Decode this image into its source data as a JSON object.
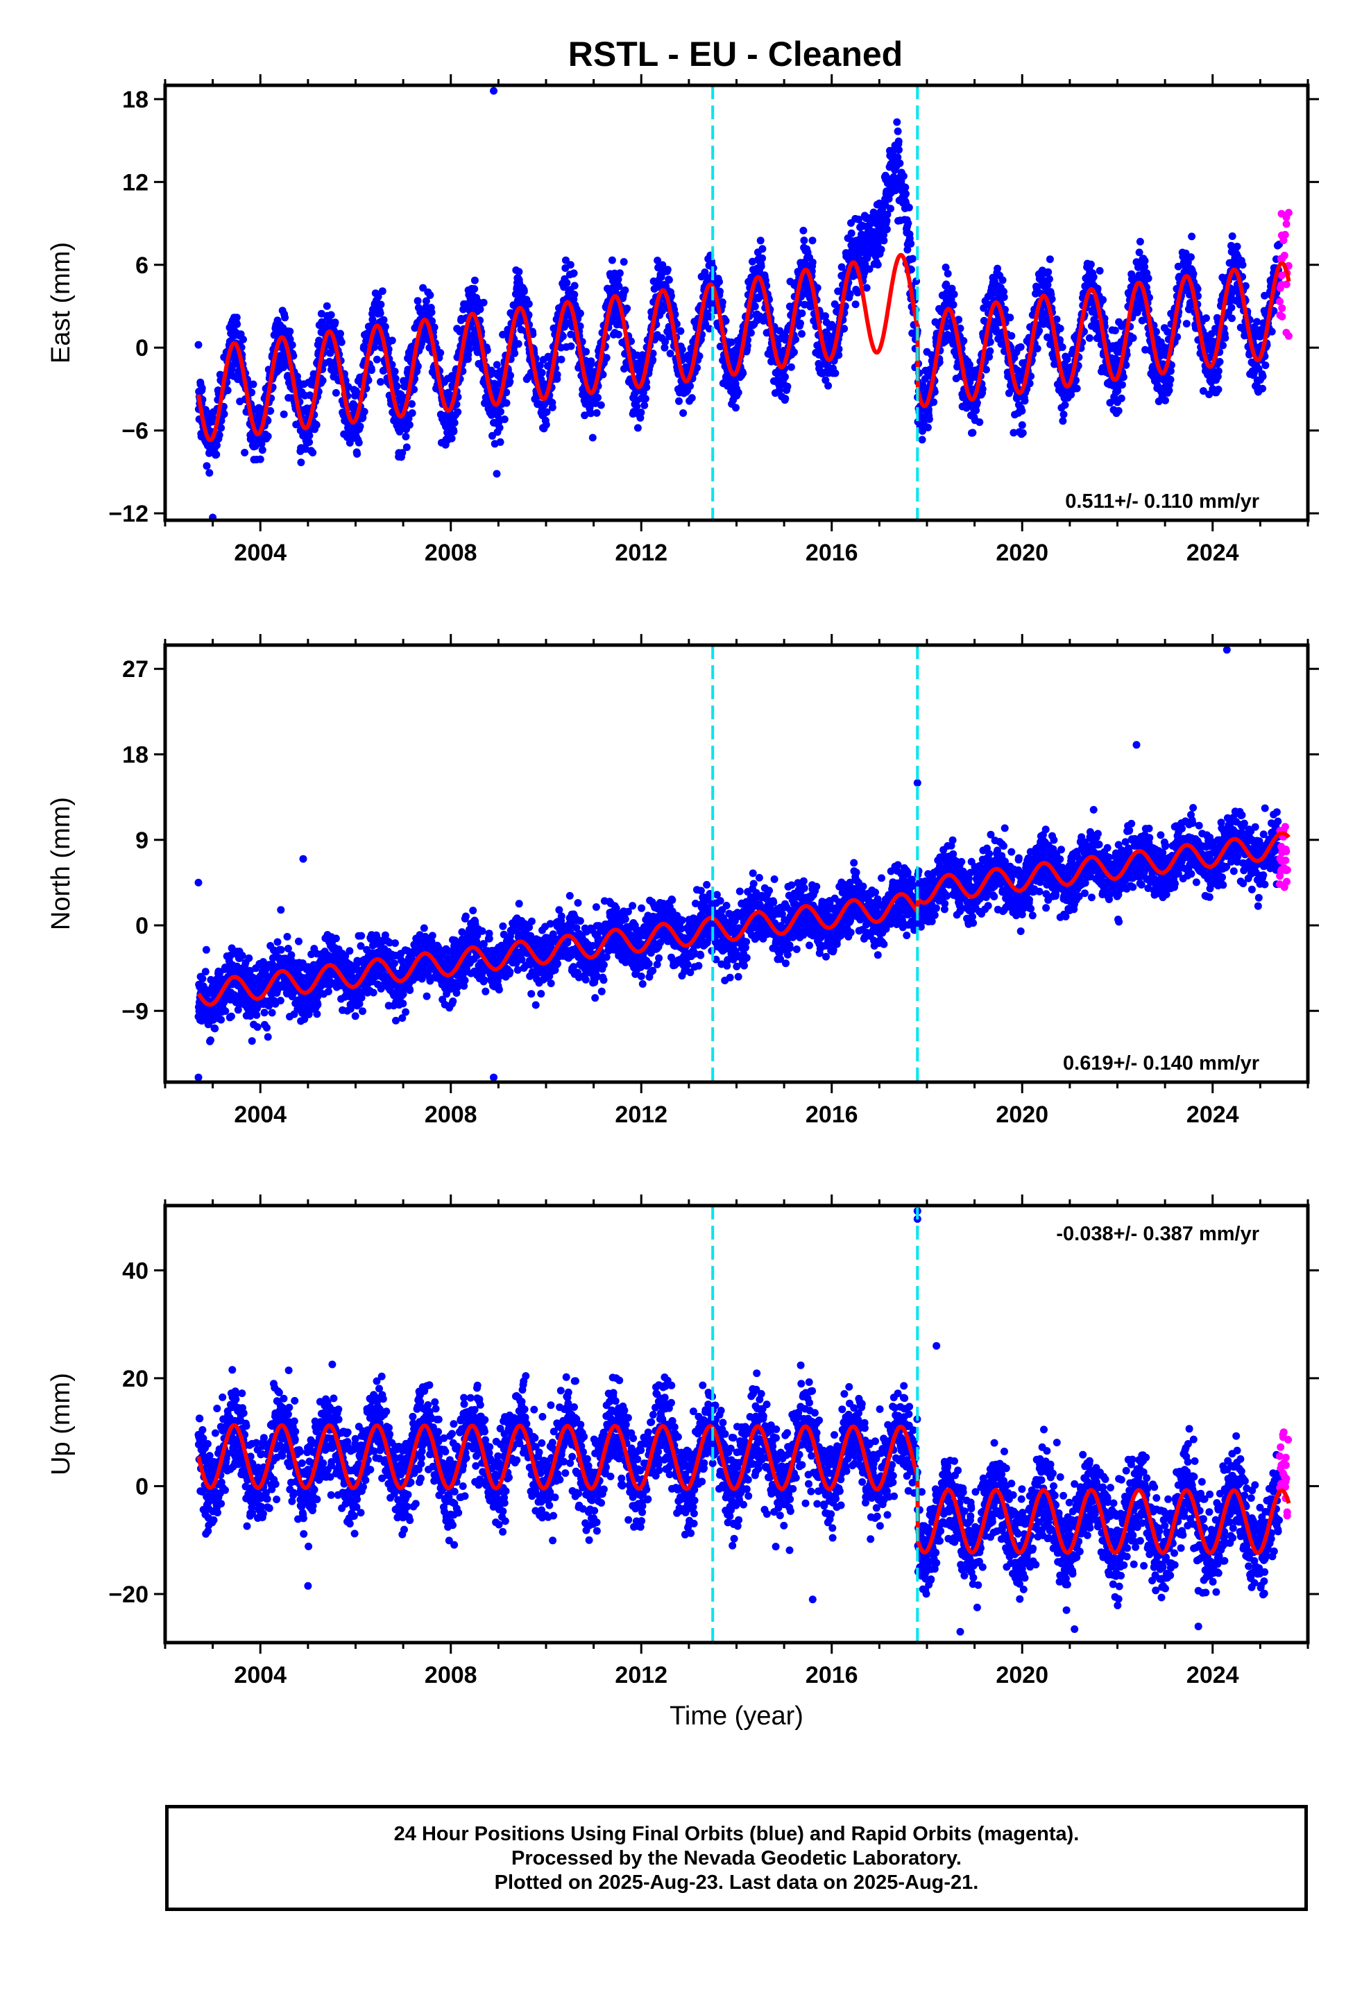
{
  "title": "RSTL  - EU - Cleaned",
  "footer": {
    "line1": "24 Hour Positions Using Final Orbits (blue) and Rapid Orbits (magenta).",
    "line2": "Processed by the Nevada Geodetic Laboratory.",
    "line3": "Plotted on 2025-Aug-23. Last data on 2025-Aug-21."
  },
  "colors": {
    "final_orbits": "#0000ff",
    "rapid_orbits": "#ff00ff",
    "model": "#ff0000",
    "offsets": "#00e5ee"
  },
  "chart_data": [
    {
      "type": "scatter",
      "panel": "east",
      "ylabel": "East (mm)",
      "xlabel": "",
      "xlim": [
        2002.0,
        2026.0
      ],
      "ylim": [
        -12.5,
        19.0
      ],
      "xticks": [
        2004,
        2008,
        2012,
        2016,
        2020,
        2024
      ],
      "yticks": [
        -12,
        -6,
        0,
        6,
        12,
        18
      ],
      "rate_label": "0.511+/- 0.110 mm/yr",
      "rate_position": "bottom-right",
      "offset_lines": [
        2013.5,
        2017.8
      ],
      "data_range": [
        2002.7,
        2025.6
      ],
      "series": [
        {
          "name": "Final Orbits (blue)",
          "color": "#0000ff",
          "x_start": 2002.7,
          "x_end": 2025.4,
          "trend_mm": [
            [
              2002.7,
              -3.4
            ],
            [
              2013.5,
              1.2
            ],
            [
              2017.8,
              3.5
            ],
            [
              2017.81,
              -0.9
            ],
            [
              2025.6,
              2.8
            ]
          ],
          "annual_amplitude_mm": 3.4,
          "scatter_mm": 1.3,
          "anomaly": {
            "x": [
              2016.5,
              2017.7
            ],
            "extra_mm": 9.0
          }
        },
        {
          "name": "Rapid Orbits (magenta)",
          "color": "#ff00ff",
          "x_start": 2025.4,
          "x_end": 2025.6,
          "y_range": [
            0.5,
            10.5
          ]
        },
        {
          "name": "Model",
          "color": "#ff0000",
          "type": "line"
        }
      ],
      "outliers": [
        [
          2008.9,
          18.6
        ],
        [
          2003.0,
          -12.3
        ]
      ]
    },
    {
      "type": "scatter",
      "panel": "north",
      "ylabel": "North (mm)",
      "xlabel": "",
      "xlim": [
        2002.0,
        2026.0
      ],
      "ylim": [
        -16.5,
        29.5
      ],
      "xticks": [
        2004,
        2008,
        2012,
        2016,
        2020,
        2024
      ],
      "yticks": [
        -9,
        0,
        9,
        18,
        27
      ],
      "rate_label": "0.619+/- 0.140 mm/yr",
      "rate_position": "bottom-right",
      "offset_lines": [
        2013.5,
        2017.8
      ],
      "data_range": [
        2002.7,
        2025.6
      ],
      "series": [
        {
          "name": "Final Orbits (blue)",
          "color": "#0000ff",
          "x_start": 2002.7,
          "x_end": 2025.4,
          "trend_mm": [
            [
              2002.7,
              -7.2
            ],
            [
              2013.5,
              -0.5
            ],
            [
              2017.8,
              2.2
            ],
            [
              2017.81,
              3.6
            ],
            [
              2025.6,
              8.5
            ]
          ],
          "annual_amplitude_mm": 1.3,
          "scatter_mm": 1.6
        },
        {
          "name": "Rapid Orbits (magenta)",
          "color": "#ff00ff",
          "x_start": 2025.4,
          "x_end": 2025.6,
          "y_range": [
            4.0,
            10.5
          ]
        },
        {
          "name": "Model",
          "color": "#ff0000",
          "type": "line"
        }
      ],
      "outliers": [
        [
          2024.3,
          29.0
        ],
        [
          2022.4,
          19.0
        ],
        [
          2002.7,
          -16.0
        ],
        [
          2008.9,
          -16.0
        ],
        [
          2017.8,
          15.0
        ],
        [
          2004.9,
          7.0
        ],
        [
          2002.7,
          4.5
        ]
      ]
    },
    {
      "type": "scatter",
      "panel": "up",
      "ylabel": "Up (mm)",
      "xlabel": "Time (year)",
      "xlim": [
        2002.0,
        2026.0
      ],
      "ylim": [
        -29.0,
        52.0
      ],
      "xticks": [
        2004,
        2008,
        2012,
        2016,
        2020,
        2024
      ],
      "yticks": [
        -20,
        0,
        20,
        40
      ],
      "rate_label": "-0.038+/- 0.387 mm/yr",
      "rate_position": "top-right",
      "offset_lines": [
        2013.5,
        2017.8
      ],
      "data_range": [
        2002.7,
        2025.6
      ],
      "series": [
        {
          "name": "Final Orbits (blue)",
          "color": "#0000ff",
          "x_start": 2002.7,
          "x_end": 2025.4,
          "trend_mm": [
            [
              2002.7,
              5.5
            ],
            [
              2013.5,
              5.3
            ],
            [
              2017.8,
              5.2
            ],
            [
              2017.81,
              -6.5
            ],
            [
              2025.6,
              -6.6
            ]
          ],
          "annual_amplitude_mm": 5.8,
          "scatter_mm": 4.2
        },
        {
          "name": "Rapid Orbits (magenta)",
          "color": "#ff00ff",
          "x_start": 2025.4,
          "x_end": 2025.6,
          "y_range": [
            -6.0,
            10.0
          ]
        },
        {
          "name": "Model",
          "color": "#ff0000",
          "type": "line"
        }
      ],
      "outliers": [
        [
          2017.8,
          51.0
        ],
        [
          2017.8,
          49.5
        ],
        [
          2018.2,
          26.0
        ],
        [
          2005.0,
          -18.5
        ],
        [
          2018.7,
          -27.0
        ],
        [
          2021.1,
          -26.5
        ],
        [
          2023.7,
          -26.0
        ],
        [
          2015.6,
          -21.0
        ]
      ]
    }
  ]
}
